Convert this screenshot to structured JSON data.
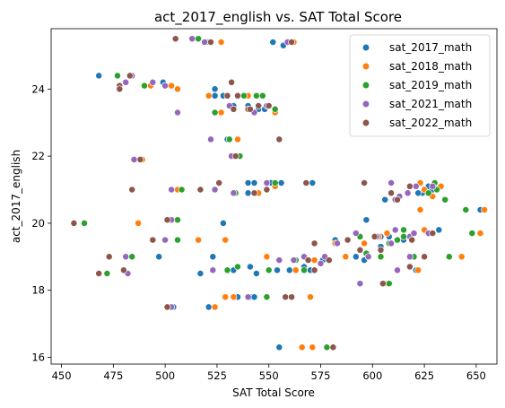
{
  "chart_data": {
    "type": "scatter",
    "title": "act_2017_english vs. SAT Total Score",
    "xlabel": "SAT Total Score",
    "ylabel": "act_2017_english",
    "xlim": [
      445,
      660
    ],
    "ylim": [
      15.8,
      25.8
    ],
    "xticks": [
      450,
      475,
      500,
      525,
      550,
      575,
      600,
      625,
      650
    ],
    "yticks": [
      16,
      18,
      20,
      22,
      24
    ],
    "grid": false,
    "legend_position": "top-right",
    "series": [
      {
        "name": "sat_2017_math",
        "color": "#1f77b4",
        "points": [
          [
            468,
            24.4
          ],
          [
            499,
            24.2
          ],
          [
            524,
            24.0
          ],
          [
            524,
            23.8
          ],
          [
            528,
            23.8
          ],
          [
            524,
            23.3
          ],
          [
            533,
            23.5
          ],
          [
            540,
            23.5
          ],
          [
            545,
            23.4
          ],
          [
            548,
            23.4
          ],
          [
            530,
            22.5
          ],
          [
            533,
            22.0
          ],
          [
            540,
            21.2
          ],
          [
            543,
            21.2
          ],
          [
            551,
            21.2
          ],
          [
            556,
            21.2
          ],
          [
            571,
            21.2
          ],
          [
            540,
            20.9
          ],
          [
            606,
            20.7
          ],
          [
            624,
            20.9
          ],
          [
            627,
            21.1
          ],
          [
            629,
            21.0
          ],
          [
            622,
            20.9
          ],
          [
            652,
            20.4
          ],
          [
            528,
            20.0
          ],
          [
            597,
            20.1
          ],
          [
            582,
            19.5
          ],
          [
            594,
            19.6
          ],
          [
            604,
            19.6
          ],
          [
            615,
            19.5
          ],
          [
            604,
            19.3
          ],
          [
            608,
            19.6
          ],
          [
            620,
            19.7
          ],
          [
            632,
            19.8
          ],
          [
            576,
            18.9
          ],
          [
            592,
            19.0
          ],
          [
            596,
            18.9
          ],
          [
            523,
            19.0
          ],
          [
            541,
            18.7
          ],
          [
            533,
            18.6
          ],
          [
            497,
            19.0
          ],
          [
            517,
            18.5
          ],
          [
            544,
            18.5
          ],
          [
            554,
            18.6
          ],
          [
            560,
            18.6
          ],
          [
            570,
            18.6
          ],
          [
            567,
            18.7
          ],
          [
            535,
            17.8
          ],
          [
            541,
            17.8
          ],
          [
            543,
            17.8
          ],
          [
            521,
            17.5
          ],
          [
            504,
            17.5
          ],
          [
            552,
            25.4
          ],
          [
            557,
            25.3
          ],
          [
            555,
            16.3
          ],
          [
            621,
            18.6
          ]
        ]
      },
      {
        "name": "sat_2018_math",
        "color": "#ff7f0e",
        "points": [
          [
            506,
            24.0
          ],
          [
            503,
            24.1
          ],
          [
            493,
            24.1
          ],
          [
            521,
            23.8
          ],
          [
            527,
            23.3
          ],
          [
            540,
            23.8
          ],
          [
            547,
            23.8
          ],
          [
            553,
            23.3
          ],
          [
            560,
            25.4
          ],
          [
            562,
            25.4
          ],
          [
            527,
            25.4
          ],
          [
            535,
            22.5
          ],
          [
            535,
            22.0
          ],
          [
            489,
            21.9
          ],
          [
            506,
            21.0
          ],
          [
            545,
            20.9
          ],
          [
            553,
            21.1
          ],
          [
            524,
            21.0
          ],
          [
            568,
            21.2
          ],
          [
            623,
            21.2
          ],
          [
            625,
            21.0
          ],
          [
            633,
            21.1
          ],
          [
            629,
            20.8
          ],
          [
            623,
            20.4
          ],
          [
            654,
            20.4
          ],
          [
            487,
            20.0
          ],
          [
            516,
            19.5
          ],
          [
            529,
            19.5
          ],
          [
            582,
            19.4
          ],
          [
            596,
            19.4
          ],
          [
            603,
            19.6
          ],
          [
            607,
            19.7
          ],
          [
            625,
            19.8
          ],
          [
            652,
            19.7
          ],
          [
            572,
            18.9
          ],
          [
            549,
            19.0
          ],
          [
            587,
            19.0
          ],
          [
            598,
            19.0
          ],
          [
            643,
            19.0
          ],
          [
            622,
            18.6
          ],
          [
            563,
            18.6
          ],
          [
            529,
            17.8
          ],
          [
            524,
            17.5
          ],
          [
            570,
            17.8
          ],
          [
            533,
            17.8
          ],
          [
            566,
            16.3
          ],
          [
            571,
            16.3
          ],
          [
            606,
            18.2
          ]
        ]
      },
      {
        "name": "sat_2019_math",
        "color": "#2ca02c",
        "points": [
          [
            477,
            24.4
          ],
          [
            490,
            24.1
          ],
          [
            516,
            25.5
          ],
          [
            521,
            25.4
          ],
          [
            461,
            20.0
          ],
          [
            472,
            18.5
          ],
          [
            484,
            19.0
          ],
          [
            506,
            20.1
          ],
          [
            506,
            19.5
          ],
          [
            508,
            21.0
          ],
          [
            524,
            23.3
          ],
          [
            531,
            22.5
          ],
          [
            536,
            22.0
          ],
          [
            534,
            20.9
          ],
          [
            538,
            23.8
          ],
          [
            544,
            23.8
          ],
          [
            547,
            23.8
          ],
          [
            553,
            23.4
          ],
          [
            553,
            21.2
          ],
          [
            535,
            18.7
          ],
          [
            530,
            18.6
          ],
          [
            549,
            17.8
          ],
          [
            550,
            18.6
          ],
          [
            567,
            18.6
          ],
          [
            563,
            18.9
          ],
          [
            578,
            16.3
          ],
          [
            605,
            18.2
          ],
          [
            608,
            18.2
          ],
          [
            594,
            19.6
          ],
          [
            612,
            19.5
          ],
          [
            615,
            19.8
          ],
          [
            615,
            19.6
          ],
          [
            620,
            19.7
          ],
          [
            627,
            20.9
          ],
          [
            630,
            21.2
          ],
          [
            635,
            20.7
          ],
          [
            645,
            20.4
          ],
          [
            648,
            19.7
          ],
          [
            637,
            19.0
          ],
          [
            620,
            19.0
          ],
          [
            604,
            19.0
          ],
          [
            597,
            19.1
          ],
          [
            608,
            19.4
          ],
          [
            612,
            20.7
          ],
          [
            631,
            21.0
          ]
        ]
      },
      {
        "name": "sat_2021_math",
        "color": "#9467bd",
        "points": [
          [
            481,
            24.2
          ],
          [
            484,
            24.4
          ],
          [
            494,
            24.2
          ],
          [
            500,
            24.1
          ],
          [
            506,
            23.3
          ],
          [
            513,
            25.5
          ],
          [
            519,
            25.4
          ],
          [
            559,
            25.4
          ],
          [
            503,
            21.0
          ],
          [
            485,
            21.9
          ],
          [
            481,
            19.0
          ],
          [
            482,
            18.5
          ],
          [
            500,
            19.5
          ],
          [
            503,
            20.1
          ],
          [
            503,
            17.5
          ],
          [
            524,
            21.0
          ],
          [
            522,
            22.5
          ],
          [
            531,
            23.5
          ],
          [
            532,
            22.0
          ],
          [
            543,
            23.3
          ],
          [
            549,
            23.5
          ],
          [
            549,
            21.2
          ],
          [
            533,
            20.9
          ],
          [
            523,
            18.6
          ],
          [
            540,
            17.8
          ],
          [
            555,
            18.9
          ],
          [
            562,
            18.9
          ],
          [
            577,
            19.0
          ],
          [
            594,
            18.2
          ],
          [
            592,
            19.7
          ],
          [
            598,
            19.0
          ],
          [
            602,
            19.6
          ],
          [
            609,
            19.4
          ],
          [
            611,
            19.8
          ],
          [
            618,
            19.6
          ],
          [
            618,
            19.0
          ],
          [
            620,
            19.7
          ],
          [
            609,
            21.2
          ],
          [
            611,
            20.7
          ],
          [
            613,
            20.8
          ],
          [
            617,
            20.9
          ],
          [
            621,
            21.1
          ],
          [
            629,
            21.1
          ],
          [
            627,
            19.7
          ],
          [
            612,
            18.6
          ],
          [
            567,
            19.0
          ],
          [
            575,
            18.8
          ],
          [
            583,
            19.4
          ]
        ]
      },
      {
        "name": "sat_2022_math",
        "color": "#8c564b",
        "points": [
          [
            456,
            20.0
          ],
          [
            468,
            18.5
          ],
          [
            473,
            19.0
          ],
          [
            478,
            24.1
          ],
          [
            478,
            24.0
          ],
          [
            483,
            24.4
          ],
          [
            480,
            18.6
          ],
          [
            484,
            21.0
          ],
          [
            488,
            21.9
          ],
          [
            494,
            19.5
          ],
          [
            501,
            20.1
          ],
          [
            501,
            17.5
          ],
          [
            505,
            25.5
          ],
          [
            517,
            21.0
          ],
          [
            522,
            25.4
          ],
          [
            526,
            21.2
          ],
          [
            530,
            23.8
          ],
          [
            532,
            24.2
          ],
          [
            533,
            23.4
          ],
          [
            535,
            23.8
          ],
          [
            540,
            23.4
          ],
          [
            541,
            23.4
          ],
          [
            545,
            23.5
          ],
          [
            550,
            23.5
          ],
          [
            555,
            22.5
          ],
          [
            549,
            21.0
          ],
          [
            543,
            20.9
          ],
          [
            534,
            22.0
          ],
          [
            558,
            17.8
          ],
          [
            561,
            17.8
          ],
          [
            561,
            25.4
          ],
          [
            569,
            18.9
          ],
          [
            572,
            19.4
          ],
          [
            579,
            18.9
          ],
          [
            581,
            16.3
          ],
          [
            572,
            18.6
          ],
          [
            568,
            21.2
          ],
          [
            588,
            19.5
          ],
          [
            594,
            19.2
          ],
          [
            596,
            21.2
          ],
          [
            601,
            19.6
          ],
          [
            604,
            19.2
          ],
          [
            605,
            18.2
          ],
          [
            609,
            20.9
          ],
          [
            612,
            20.7
          ],
          [
            618,
            21.1
          ],
          [
            618,
            18.7
          ],
          [
            619,
            19.5
          ],
          [
            625,
            19.0
          ],
          [
            629,
            19.7
          ]
        ]
      }
    ]
  }
}
